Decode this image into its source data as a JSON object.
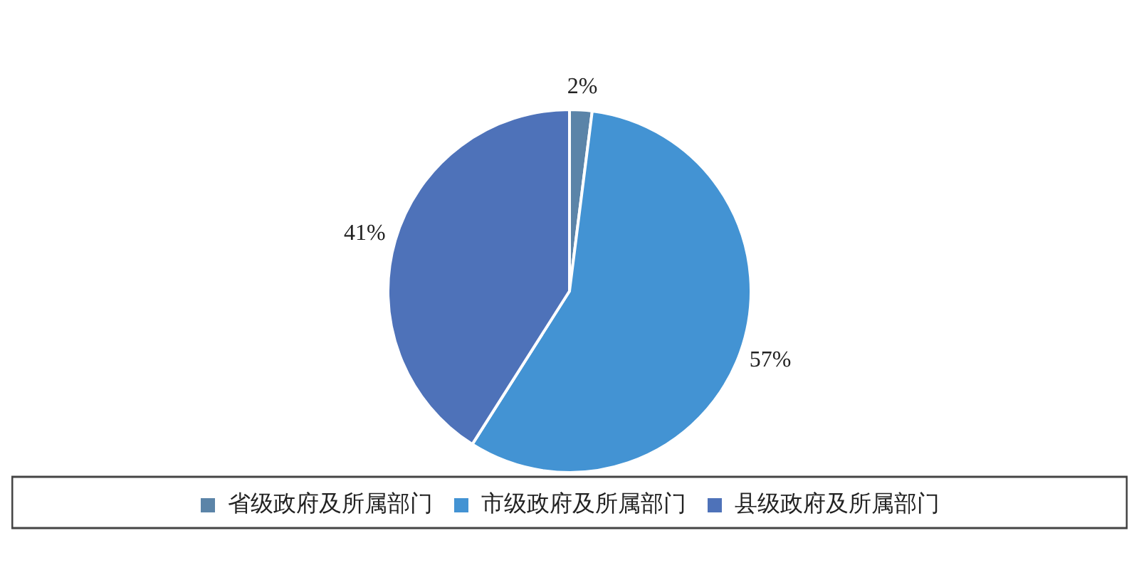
{
  "chart_data": {
    "type": "pie",
    "categories": [
      "省级政府及所属部门",
      "市级政府及所属部门",
      "县级政府及所属部门"
    ],
    "values": [
      2,
      57,
      41
    ],
    "colors": [
      "#5b84a8",
      "#4393d3",
      "#4e72b9"
    ],
    "value_labels": [
      "2%",
      "57%",
      "41%"
    ],
    "legend": "bottom"
  }
}
